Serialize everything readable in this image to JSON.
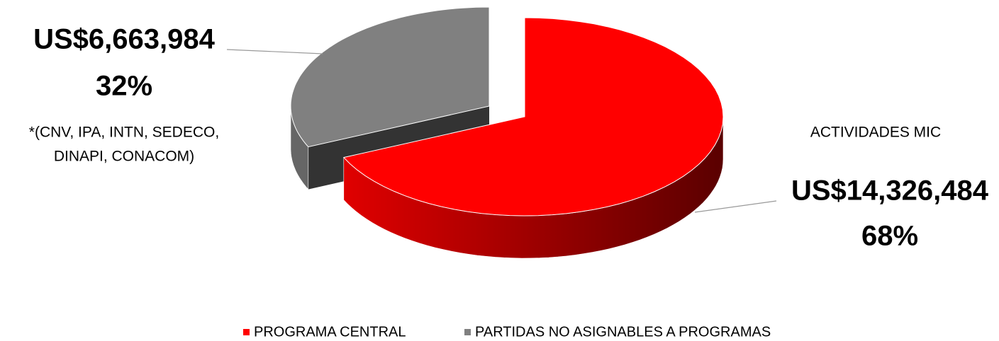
{
  "chart_data": {
    "type": "pie",
    "categories": [
      "PROGRAMA CENTRAL",
      "PARTIDAS NO ASIGNABLES A PROGRAMAS"
    ],
    "values": [
      14326484,
      6663984
    ],
    "value_labels": [
      "US$14,326,484",
      "US$6,663,984"
    ],
    "percent_values": [
      68,
      32
    ],
    "percent_labels": [
      "68%",
      "32%"
    ],
    "colors": [
      "#ff0000",
      "#808080"
    ],
    "annotations": [
      "ACTIVIDADES MIC",
      "*(CNV, IPA, INTN, SEDECO,",
      "DINAPI, CONACOM)"
    ],
    "legend": "bottom"
  }
}
